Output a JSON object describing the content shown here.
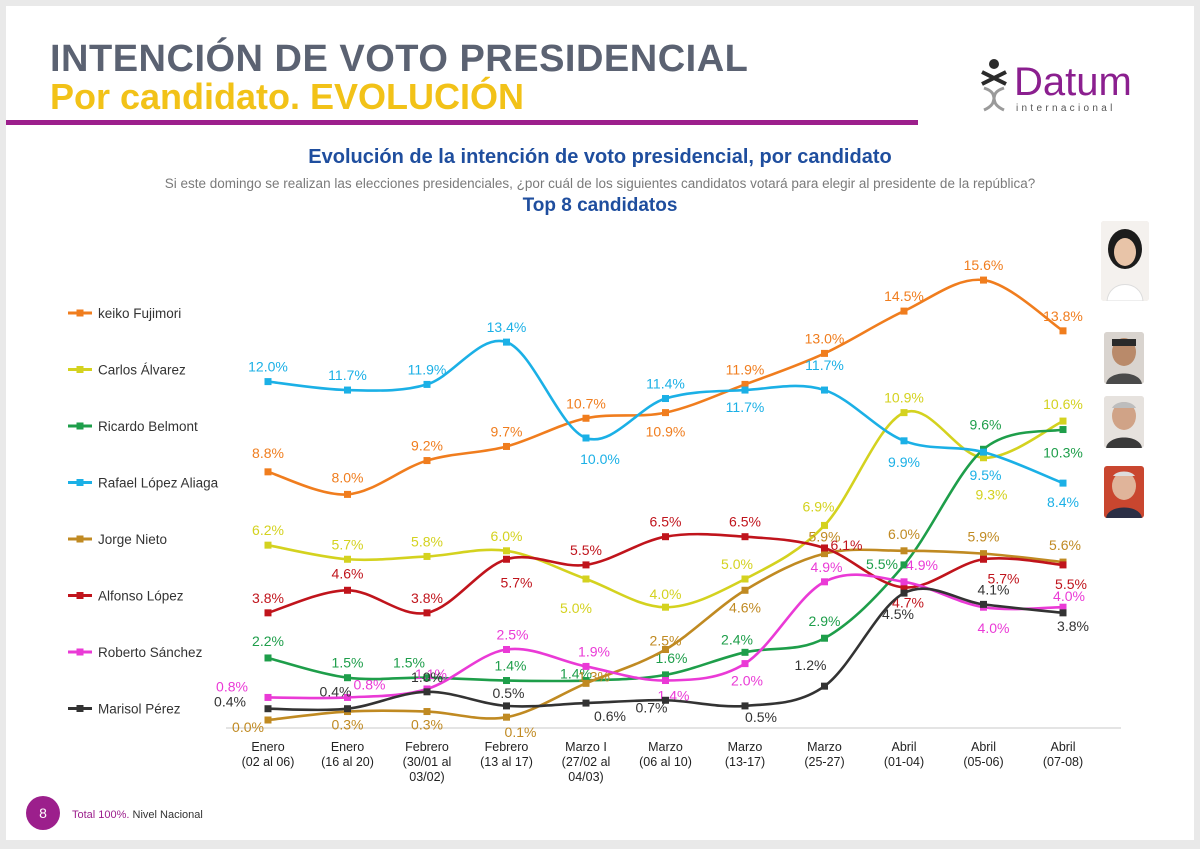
{
  "header": {
    "title_line1": "INTENCIÓN DE VOTO PRESIDENCIAL",
    "title_line2": "Por candidato. EVOLUCIÓN",
    "logo_name": "Datum",
    "logo_sub": "internacional"
  },
  "chart_header": {
    "title": "Evolución de la intención de voto presidencial, por candidato",
    "question": "Si este domingo se realizan las elecciones presidenciales, ¿por cuál de los siguientes candidatos votará para elegir al presidente de la república?",
    "subtitle": "Top 8  candidatos"
  },
  "footer": {
    "page_number": "8",
    "total": "Total 100%.",
    "scope": "Nivel Nacional"
  },
  "chart_data": {
    "type": "line",
    "title": "Evolución de la intención de voto presidencial, por candidato",
    "ylabel": "%",
    "ylim": [
      0,
      16
    ],
    "grid": false,
    "legend_position": "left",
    "categories": [
      [
        "Enero",
        "(02 al 06)"
      ],
      [
        "Enero",
        "(16 al 20)"
      ],
      [
        "Febrero",
        "(30/01 al",
        "03/02)"
      ],
      [
        "Febrero",
        "(13 al 17)"
      ],
      [
        "Marzo I",
        "(27/02 al",
        "04/03)"
      ],
      [
        "Marzo",
        "(06 al 10)"
      ],
      [
        "Marzo",
        "(13-17)"
      ],
      [
        "Marzo",
        "(25-27)"
      ],
      [
        "Abril",
        "(01-04)"
      ],
      [
        "Abril",
        "(05-06)"
      ],
      [
        "Abril",
        "(07-08)"
      ]
    ],
    "series": [
      {
        "name": "keiko Fujimori",
        "color": "#f07d1e",
        "values": [
          8.8,
          8.0,
          9.2,
          9.7,
          10.7,
          10.9,
          11.9,
          13.0,
          14.5,
          15.6,
          13.8
        ],
        "labels": [
          "8.8%",
          "8.0%",
          "9.2%",
          "9.7%",
          "10.7%",
          "10.9%",
          "11.9%",
          "13.0%",
          "14.5%",
          "15.6%",
          "13.8%"
        ]
      },
      {
        "name": "Carlos Álvarez",
        "color": "#d4d21f",
        "values": [
          6.2,
          5.7,
          5.8,
          6.0,
          5.0,
          4.0,
          5.0,
          6.9,
          10.9,
          9.3,
          10.6
        ],
        "labels": [
          "6.2%",
          "5.7%",
          "5.8%",
          "6.0%",
          "5.0%",
          "4.0%",
          "5.0%",
          "6.9%",
          "10.9%",
          "9.3%",
          "10.6%"
        ]
      },
      {
        "name": "Ricardo Belmont",
        "color": "#1e9e4a",
        "values": [
          2.2,
          1.5,
          1.5,
          1.4,
          1.4,
          1.6,
          2.4,
          2.9,
          5.5,
          9.6,
          10.3
        ],
        "labels": [
          "2.2%",
          "1.5%",
          "1.5%",
          "1.4%",
          "1.4%",
          "1.6%",
          "2.4%",
          "2.9%",
          "5.5%",
          "9.6%",
          "10.3%"
        ]
      },
      {
        "name": "Rafael López Aliaga",
        "color": "#1bb0e6",
        "values": [
          12.0,
          11.7,
          11.9,
          13.4,
          10.0,
          11.4,
          11.7,
          11.7,
          9.9,
          9.5,
          8.4
        ],
        "labels": [
          "12.0%",
          "11.7%",
          "11.9%",
          "13.4%",
          "10.0%",
          "11.4%",
          "11.7%",
          "11.7%",
          "9.9%",
          "9.5%",
          "8.4%"
        ]
      },
      {
        "name": "Jorge Nieto",
        "color": "#c08a22",
        "values": [
          0.0,
          0.3,
          0.3,
          0.1,
          1.3,
          2.5,
          4.6,
          5.9,
          6.0,
          5.9,
          5.6
        ],
        "labels": [
          "0.0%",
          "0.3%",
          "0.3%",
          "0.1%",
          "1.3%",
          "2.5%",
          "4.6%",
          "5.9%",
          "6.0%",
          "5.9%",
          "5.6%"
        ]
      },
      {
        "name": "Alfonso López",
        "color": "#c0141c",
        "values": [
          3.8,
          4.6,
          3.8,
          5.7,
          5.5,
          6.5,
          6.5,
          6.1,
          4.7,
          5.7,
          5.5
        ],
        "labels": [
          "3.8%",
          "4.6%",
          "3.8%",
          "5.7%",
          "5.5%",
          "6.5%",
          "6.5%",
          "6.1%",
          "4.7%",
          "5.7%",
          "5.5%"
        ]
      },
      {
        "name": "Roberto Sánchez",
        "color": "#ea3ad6",
        "values": [
          0.8,
          0.8,
          1.1,
          2.5,
          1.9,
          1.4,
          2.0,
          4.9,
          4.9,
          4.0,
          4.0
        ],
        "labels": [
          "0.8%",
          "0.8%",
          "1.1%",
          "2.5%",
          "1.9%",
          "1.4%",
          "2.0%",
          "4.9%",
          "4.9%",
          "4.0%",
          "4.0%"
        ]
      },
      {
        "name": "Marisol Pérez",
        "color": "#333333",
        "values": [
          0.4,
          0.4,
          1.0,
          0.5,
          0.6,
          0.7,
          0.5,
          1.2,
          4.5,
          4.1,
          3.8
        ],
        "labels": [
          "0.4%",
          "0.4%",
          "1.0%",
          "0.5%",
          "0.6%",
          "0.7%",
          "0.5%",
          "1.2%",
          "4.5%",
          "4.1%",
          "3.8%"
        ]
      }
    ]
  }
}
